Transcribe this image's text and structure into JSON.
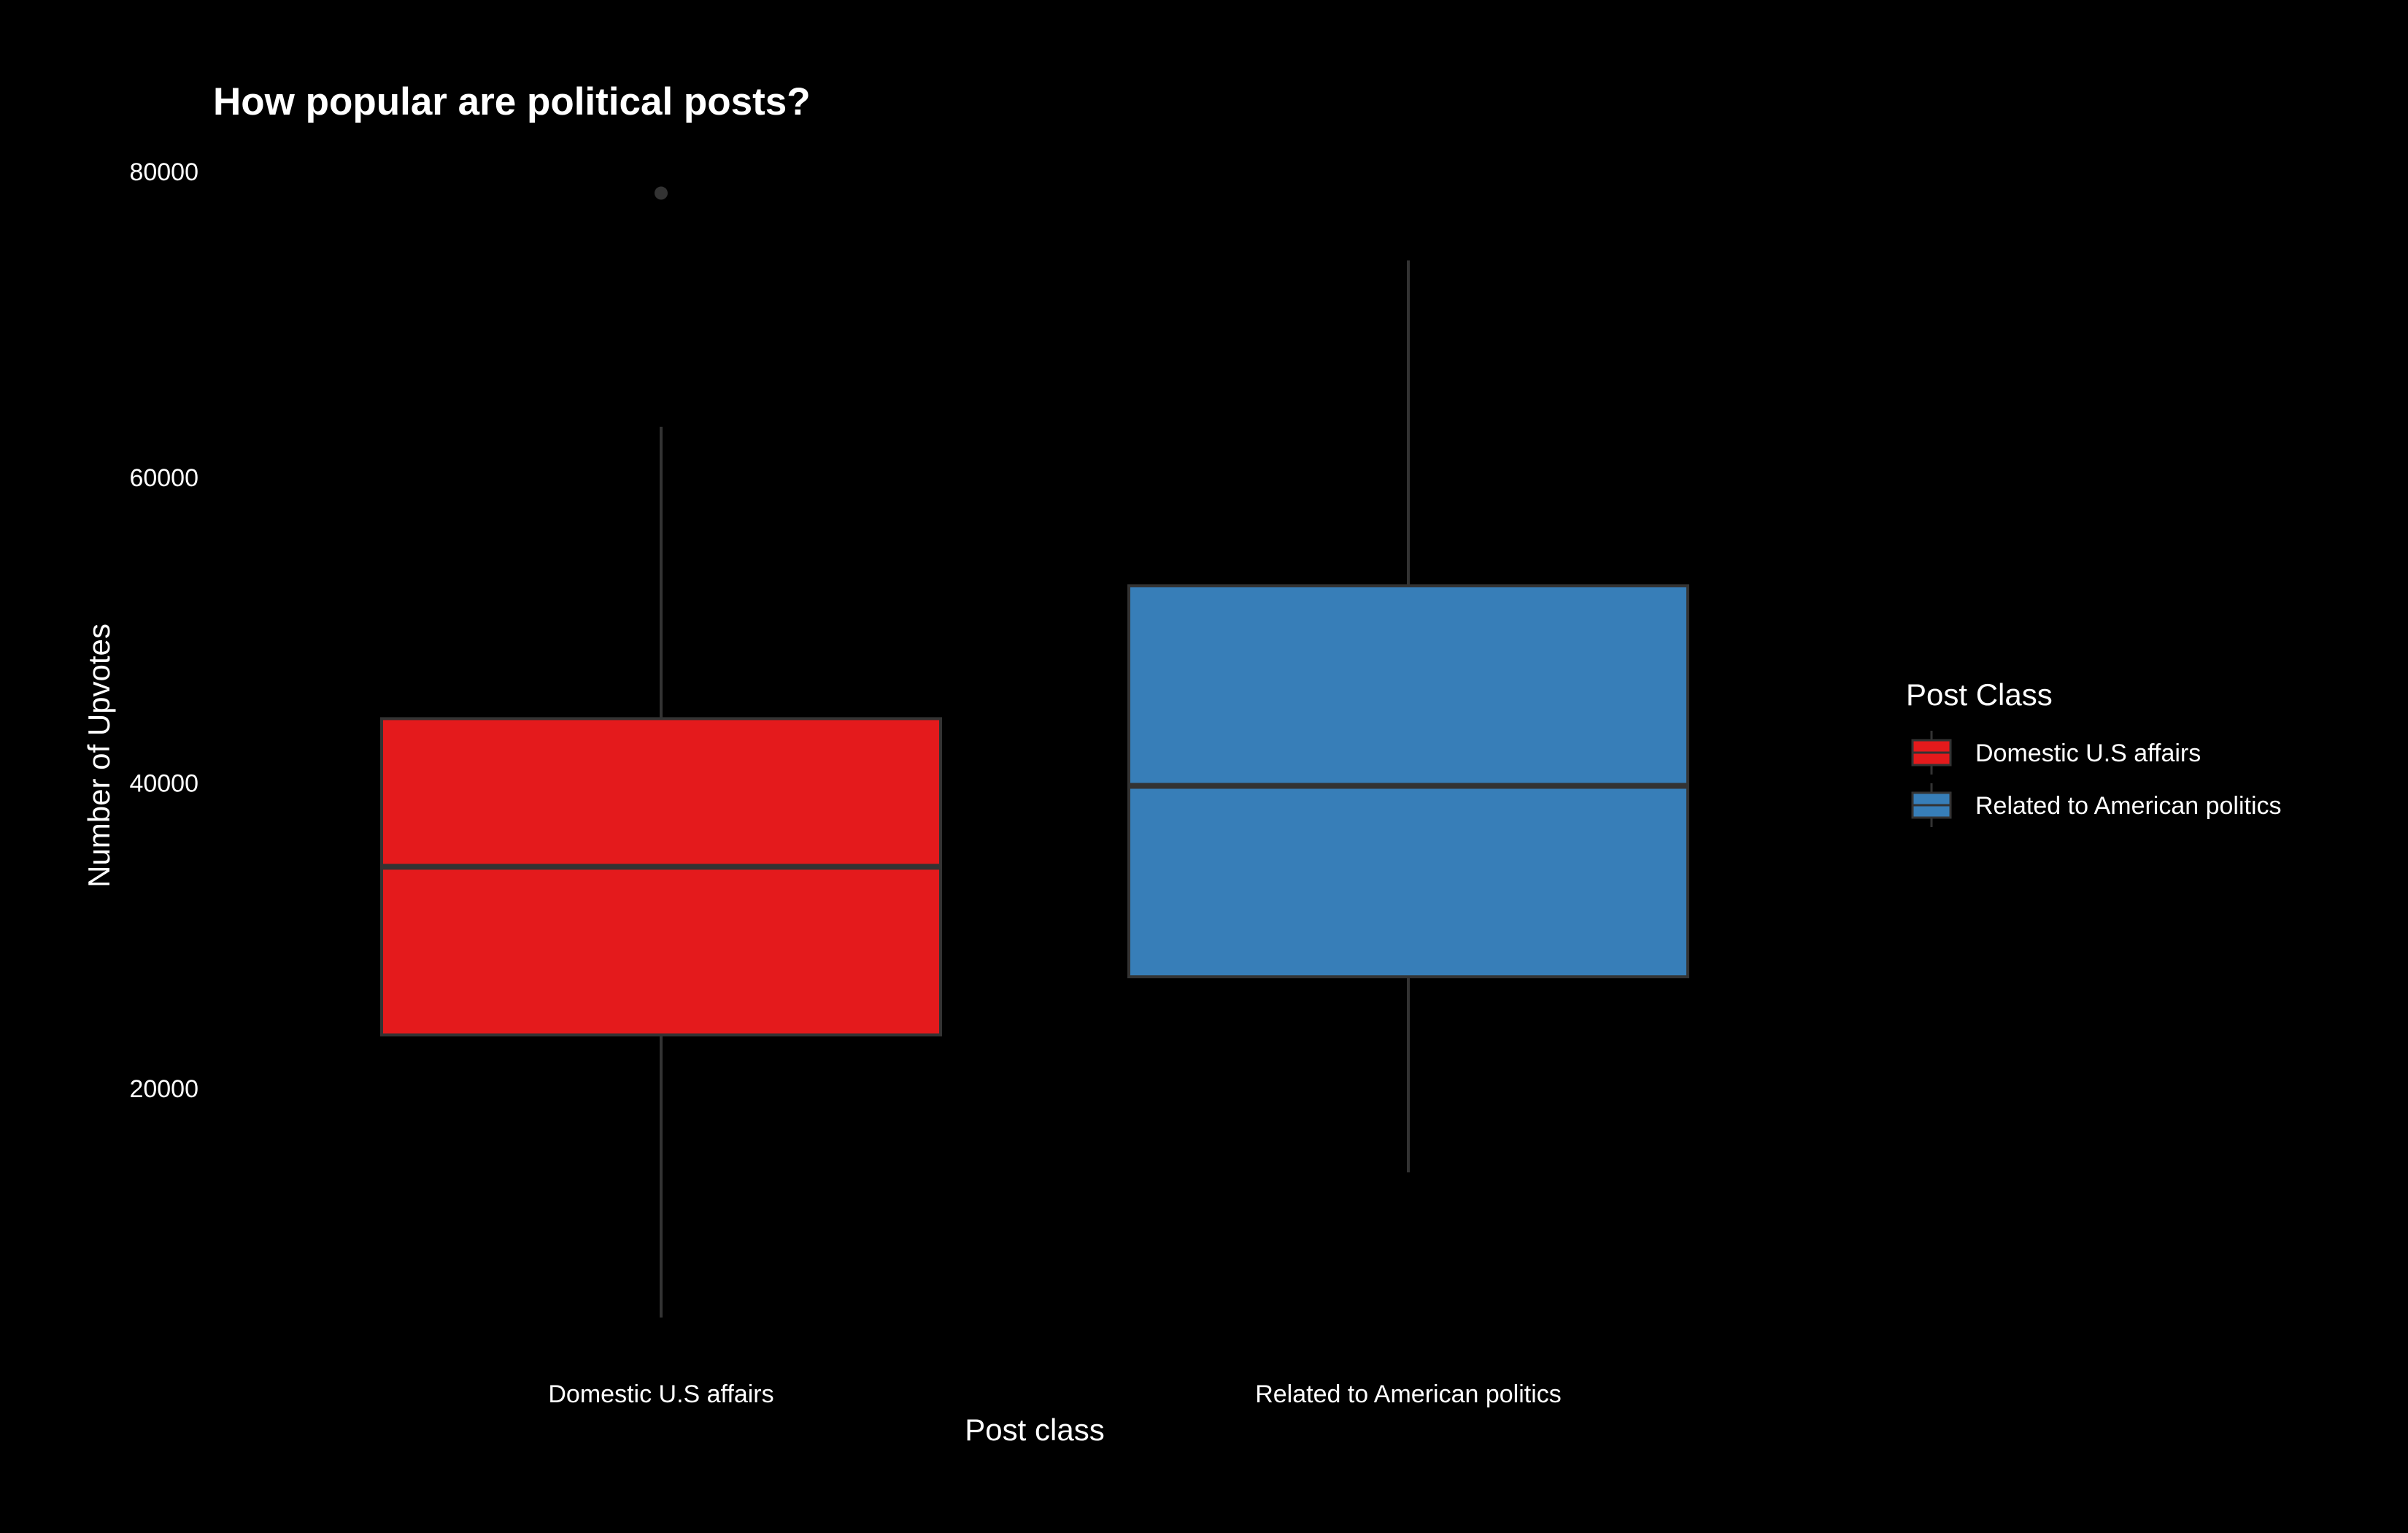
{
  "chart_data": {
    "type": "boxplot",
    "title": "How popular are political posts?",
    "xlabel": "Post class",
    "ylabel": "Number of Upvotes",
    "ylim": [
      1500,
      83500
    ],
    "yticks": [
      20000,
      40000,
      60000,
      80000
    ],
    "grid": false,
    "legend": {
      "title": "Post Class",
      "placement": "right",
      "entries": [
        "Domestic U.S affairs",
        "Related to American politics"
      ]
    },
    "categories": [
      "Domestic U.S affairs",
      "Related to American politics"
    ],
    "series": [
      {
        "name": "Domestic U.S affairs",
        "color": "#e41a1c",
        "min": 5000,
        "q1": 23500,
        "median": 34500,
        "q3": 44200,
        "max": 63300,
        "outliers": [
          78600
        ]
      },
      {
        "name": "Related to American politics",
        "color": "#377eb8",
        "min": 14500,
        "q1": 27300,
        "median": 39800,
        "q3": 52900,
        "max": 74200,
        "outliers": []
      }
    ],
    "colors": {
      "background": "#000000",
      "box_outline": "#333333",
      "text": "#ffffff"
    }
  }
}
